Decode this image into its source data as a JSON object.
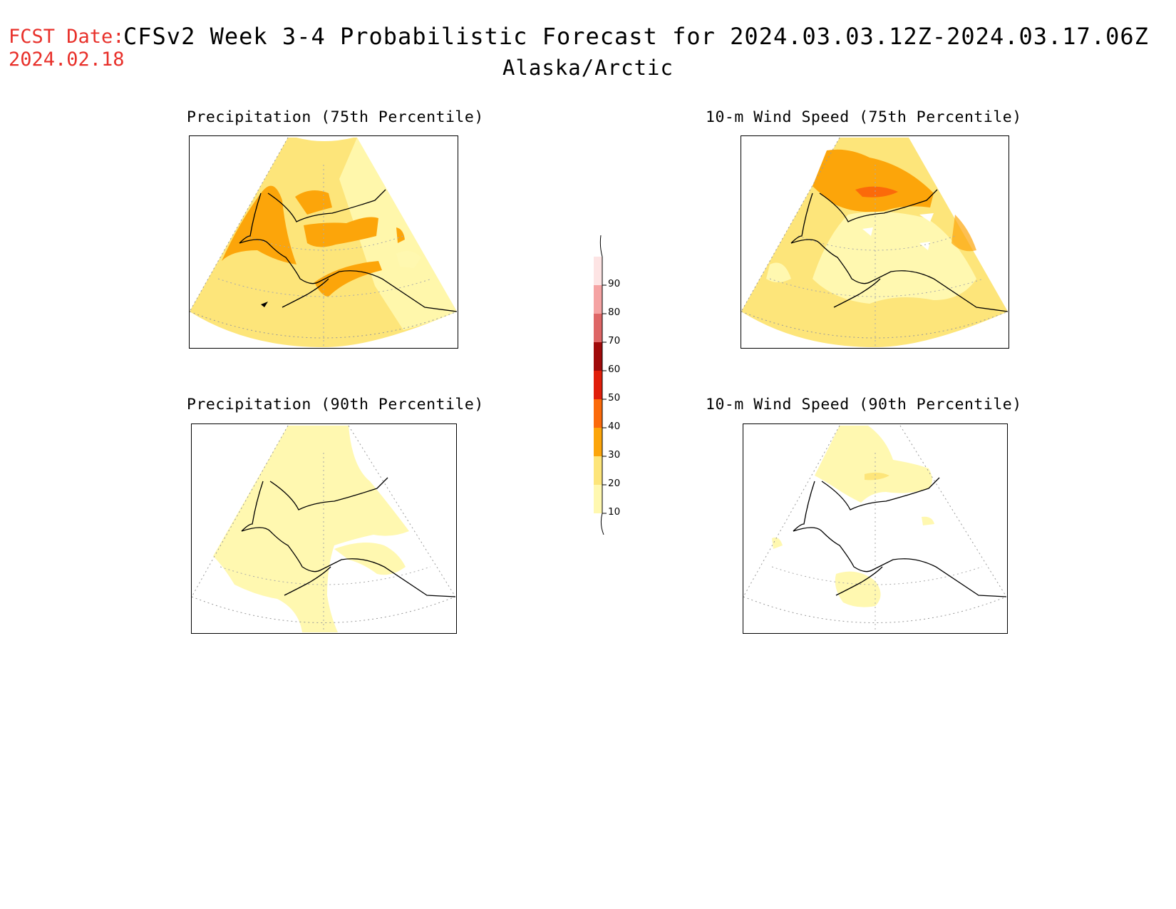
{
  "header": {
    "fcst_label": "FCST Date:",
    "fcst_date": "2024.02.18",
    "title": "CFSv2 Week 3-4 Probabilistic Forecast for 2024.03.03.12Z-2024.03.17.06Z",
    "region": "Alaska/Arctic"
  },
  "panels": [
    {
      "id": "precip75",
      "title": "Precipitation (75th Percentile)"
    },
    {
      "id": "wind75",
      "title": "10-m Wind Speed (75th Percentile)"
    },
    {
      "id": "precip90",
      "title": "Precipitation (90th Percentile)"
    },
    {
      "id": "wind90",
      "title": "10-m Wind Speed (90th Percentile)"
    }
  ],
  "legend": {
    "levels": [
      "10",
      "20",
      "30",
      "40",
      "50",
      "60",
      "70",
      "80",
      "90"
    ],
    "colors": [
      "#fff8b0",
      "#fde57a",
      "#fca50a",
      "#fb6a0a",
      "#e01e0a",
      "#a00a0a",
      "#de6666",
      "#f5a3a3",
      "#fde4e4"
    ]
  }
}
